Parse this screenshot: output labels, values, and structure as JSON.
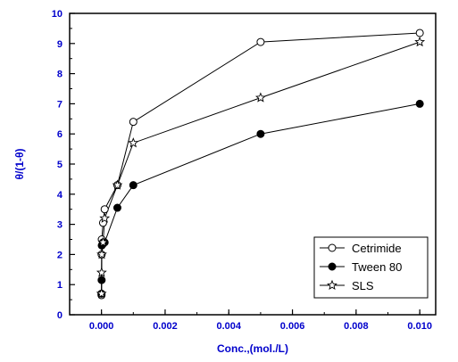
{
  "chart_data": {
    "type": "line",
    "title": "",
    "xlabel": "Conc.,(mol./L)",
    "ylabel": "θ/(1-θ)",
    "xlim": [
      -0.001,
      0.0105
    ],
    "ylim": [
      0,
      10
    ],
    "xticks": [
      0.0,
      0.002,
      0.004,
      0.006,
      0.008,
      0.01
    ],
    "xtick_labels": [
      "0.000",
      "0.002",
      "0.004",
      "0.006",
      "0.008",
      "0.010"
    ],
    "yticks": [
      0,
      1,
      2,
      3,
      4,
      5,
      6,
      7,
      8,
      9,
      10
    ],
    "ytick_labels": [
      "0",
      "1",
      "2",
      "3",
      "4",
      "5",
      "6",
      "7",
      "8",
      "9",
      "10"
    ],
    "grid": false,
    "legend_position": "bottom-right",
    "colors": {
      "axis_text": "#0000cc",
      "lines": "#000000"
    },
    "series": [
      {
        "name": "Cetrimide",
        "marker": "open-circle",
        "x": [
          1e-06,
          5e-06,
          1e-05,
          5e-05,
          0.0001,
          0.0005,
          0.001,
          0.005,
          0.01
        ],
        "y": [
          0.65,
          2.0,
          2.5,
          3.05,
          3.5,
          4.3,
          6.4,
          9.05,
          9.35
        ]
      },
      {
        "name": "Tween 80",
        "marker": "filled-circle",
        "x": [
          1e-06,
          5e-06,
          1e-05,
          5e-05,
          0.0001,
          0.0005,
          0.001,
          0.005,
          0.01
        ],
        "y": [
          0.7,
          1.15,
          2.3,
          2.4,
          2.4,
          3.55,
          4.3,
          6.0,
          7.0
        ]
      },
      {
        "name": "SLS",
        "marker": "star",
        "x": [
          1e-06,
          5e-06,
          1e-05,
          5e-05,
          0.0001,
          0.0005,
          0.001,
          0.005,
          0.01
        ],
        "y": [
          0.7,
          1.4,
          2.0,
          2.4,
          3.2,
          4.3,
          5.7,
          7.2,
          9.05
        ]
      }
    ]
  }
}
